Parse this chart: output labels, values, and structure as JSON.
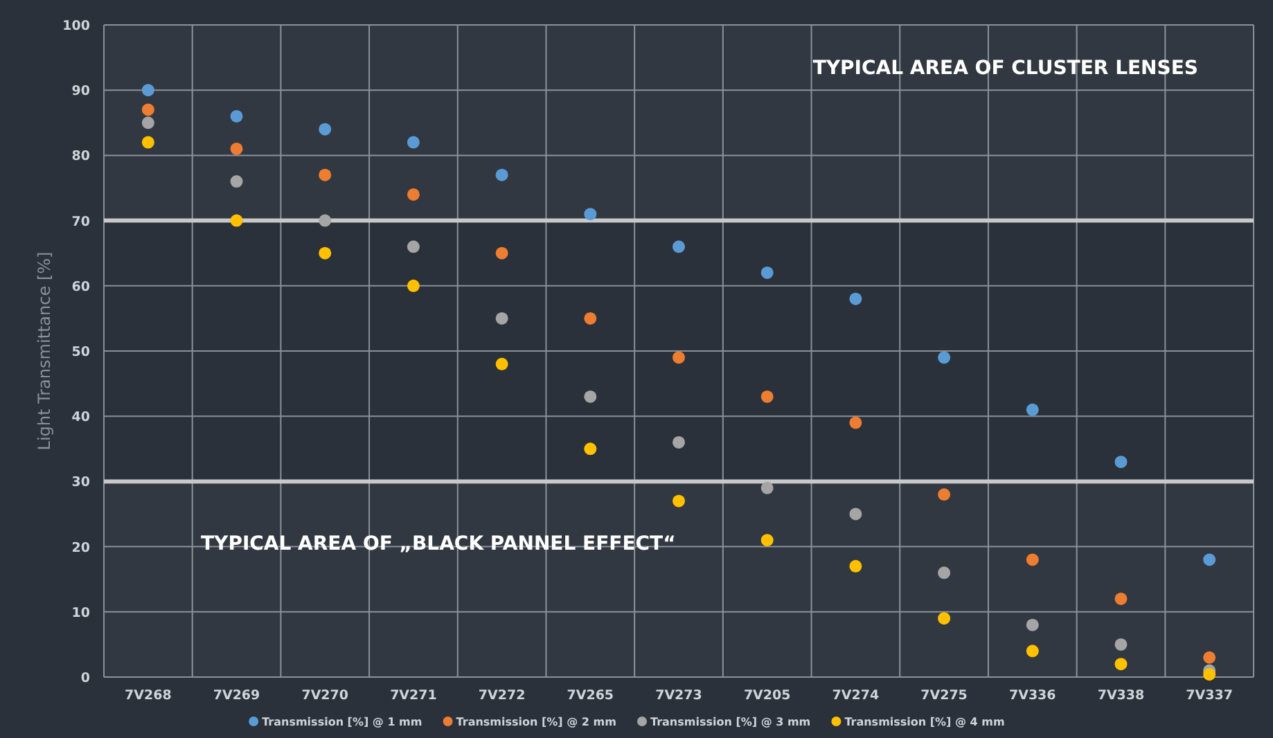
{
  "chart_data": {
    "type": "scatter",
    "ylabel": "Light Transmittance [%]",
    "categories": [
      "7V268",
      "7V269",
      "7V270",
      "7V271",
      "7V272",
      "7V265",
      "7V273",
      "7V205",
      "7V274",
      "7V275",
      "7V336",
      "7V338",
      "7V337"
    ],
    "series": [
      {
        "name": "Transmission [%] @ 1 mm",
        "color": "#5b9bd5",
        "values": [
          90,
          86,
          84,
          82,
          77,
          71,
          66,
          62,
          58,
          49,
          41,
          33,
          18
        ]
      },
      {
        "name": "Transmission [%] @ 2 mm",
        "color": "#ed7d31",
        "values": [
          87,
          81,
          77,
          74,
          65,
          55,
          49,
          43,
          39,
          28,
          18,
          12,
          3
        ]
      },
      {
        "name": "Transmission [%] @ 3 mm",
        "color": "#a5a5a5",
        "values": [
          85,
          76,
          70,
          66,
          55,
          43,
          36,
          29,
          25,
          16,
          8,
          5,
          1
        ]
      },
      {
        "name": "Transmission [%] @ 4 mm",
        "color": "#ffc000",
        "values": [
          82,
          70,
          65,
          60,
          48,
          35,
          27,
          21,
          17,
          9,
          4,
          2,
          0.4
        ]
      }
    ],
    "ylim": [
      0,
      100
    ],
    "yticks": [
      0,
      10,
      20,
      30,
      40,
      50,
      60,
      70,
      80,
      90,
      100
    ],
    "bands": [
      {
        "axis": "y",
        "from": 70,
        "to": 100,
        "label": "TYPICAL AREA OF CLUSTER LENSES",
        "color": "#c8c8c8"
      },
      {
        "axis": "y",
        "from": 0,
        "to": 30,
        "label": "TYPICAL AREA OF „BLACK PANNEL EFFECT“",
        "color": "#c8c8c8"
      }
    ],
    "grid": true,
    "legend": "bottom",
    "marker": "circle"
  }
}
